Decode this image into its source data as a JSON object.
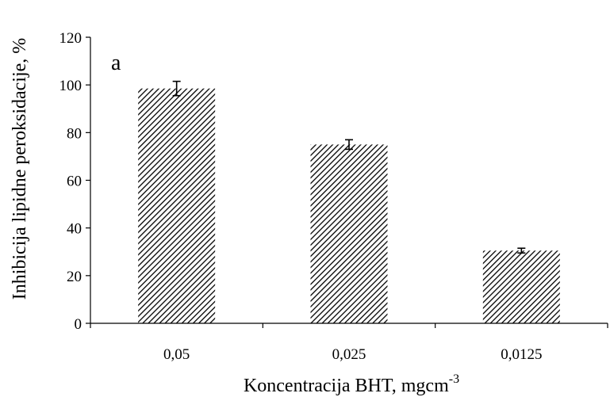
{
  "chart_data": {
    "type": "bar",
    "panel_label": "a",
    "categories": [
      "0,05",
      "0,025",
      "0,0125"
    ],
    "values": [
      98.5,
      75,
      30.5
    ],
    "errors": [
      3,
      2,
      1
    ],
    "ylabel": "Inhibicija lipidne peroksidacije, %",
    "xlabel": "Koncentracija BHT, mgcm",
    "xlabel_superscript": "-3",
    "ylim": [
      0,
      120
    ],
    "yticks": [
      0,
      20,
      40,
      60,
      80,
      100,
      120
    ],
    "grid": false,
    "bar_fill": "hatched",
    "colors": {
      "hatch": "#000000",
      "background": "#ffffff"
    }
  }
}
